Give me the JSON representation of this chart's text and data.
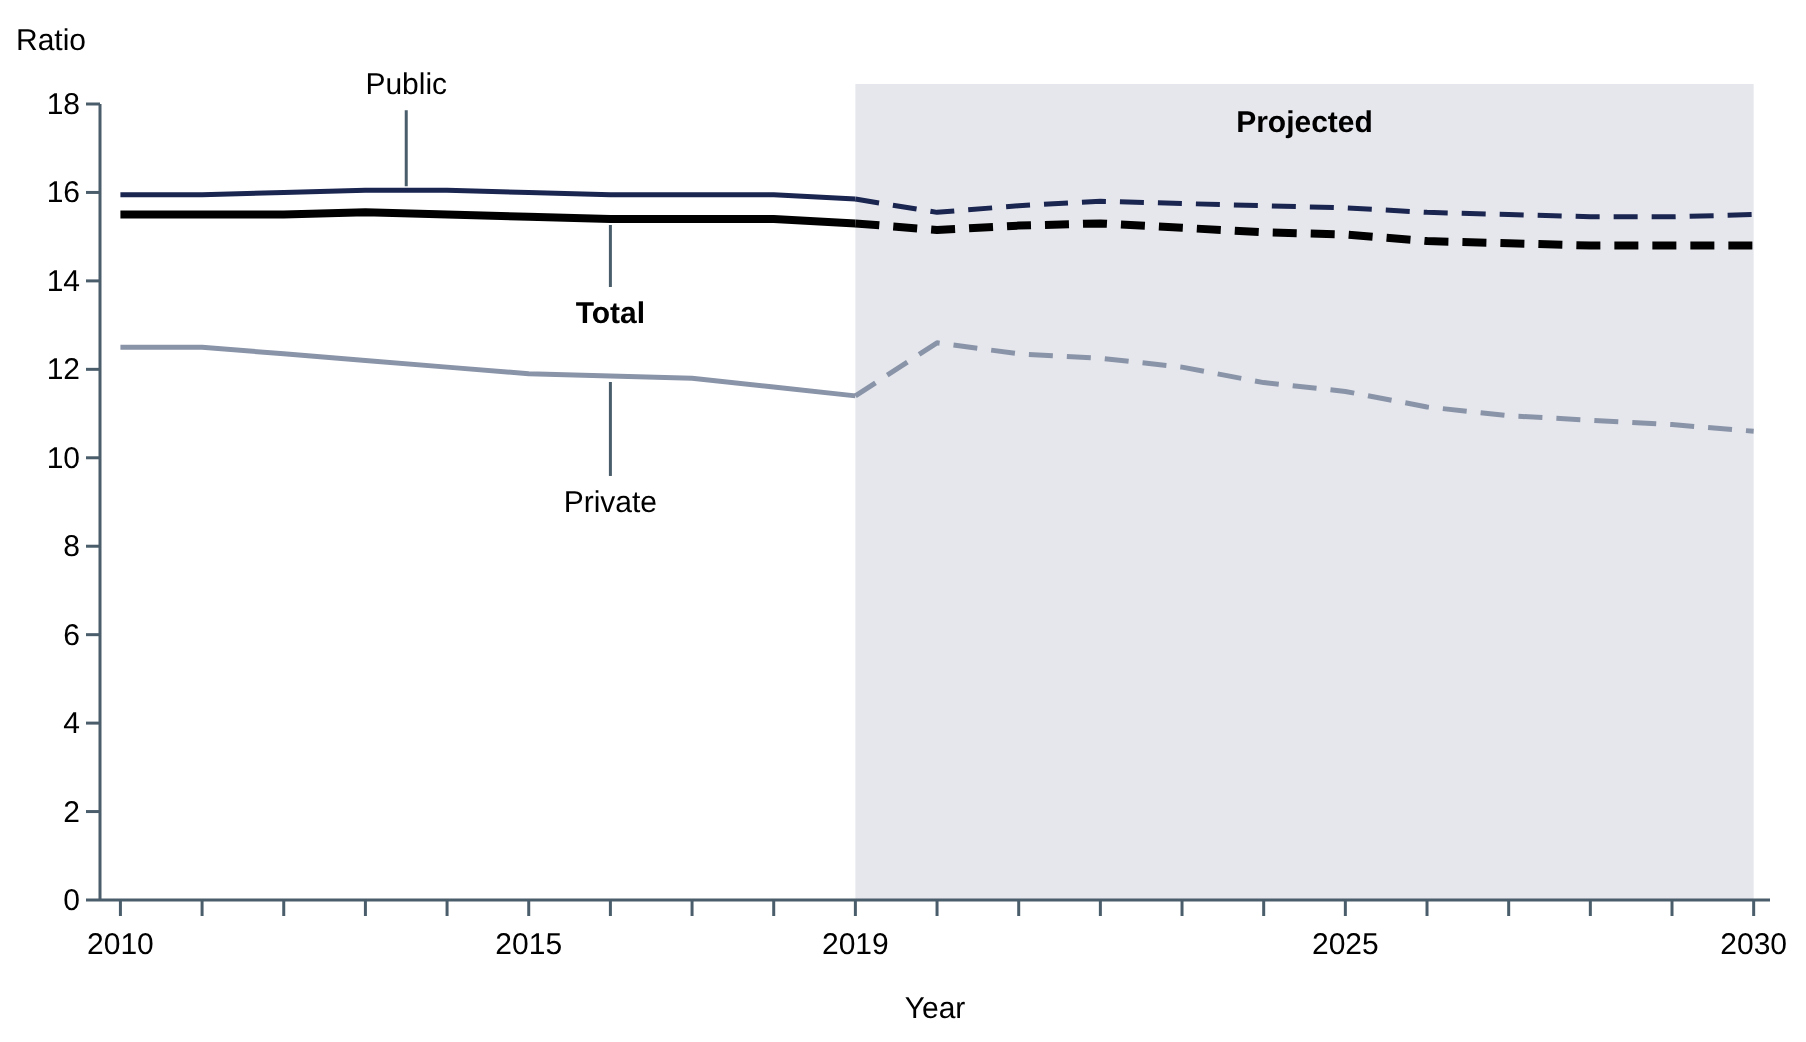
{
  "chart_data": {
    "type": "line",
    "xlabel": "Year",
    "ylabel": "Ratio",
    "xlim": [
      2009.75,
      2030.2
    ],
    "ylim": [
      0,
      18
    ],
    "xticks": [
      2010,
      {
        "value": 2011,
        "label": null
      },
      {
        "value": 2012,
        "label": null
      },
      {
        "value": 2013,
        "label": null
      },
      {
        "value": 2014,
        "label": null
      },
      2015,
      {
        "value": 2016,
        "label": null
      },
      {
        "value": 2017,
        "label": null
      },
      {
        "value": 2018,
        "label": null
      },
      2019,
      {
        "value": 2020,
        "label": null
      },
      {
        "value": 2021,
        "label": null
      },
      {
        "value": 2022,
        "label": null
      },
      {
        "value": 2023,
        "label": null
      },
      {
        "value": 2024,
        "label": null
      },
      2025,
      {
        "value": 2026,
        "label": null
      },
      {
        "value": 2027,
        "label": null
      },
      {
        "value": 2028,
        "label": null
      },
      {
        "value": 2029,
        "label": null
      },
      2030
    ],
    "yticks": [
      0,
      2,
      4,
      6,
      8,
      10,
      12,
      14,
      16,
      18
    ],
    "grid": false,
    "bands": [
      {
        "axis": "x",
        "from": 2019,
        "to": 2030,
        "label": "Projected",
        "color": "#e6e7ed"
      }
    ],
    "series": [
      {
        "name": "Public",
        "color": "#1a2550",
        "line_style": "solid",
        "x": [
          2010,
          2011,
          2012,
          2013,
          2014,
          2015,
          2016,
          2017,
          2018,
          2019
        ],
        "values": [
          15.95,
          15.95,
          16.0,
          16.05,
          16.05,
          16.0,
          15.95,
          15.95,
          15.95,
          15.85
        ]
      },
      {
        "color": "#1a2550",
        "line_style": "dashed",
        "x": [
          2019,
          2020,
          2021,
          2022,
          2023,
          2024,
          2025,
          2026,
          2027,
          2028,
          2029,
          2030
        ],
        "values": [
          15.85,
          15.55,
          15.7,
          15.8,
          15.75,
          15.7,
          15.65,
          15.55,
          15.5,
          15.45,
          15.45,
          15.5
        ]
      },
      {
        "name": "Total",
        "color": "#000000",
        "line_style": "solid",
        "x": [
          2010,
          2011,
          2012,
          2013,
          2014,
          2015,
          2016,
          2017,
          2018,
          2019
        ],
        "values": [
          15.5,
          15.5,
          15.5,
          15.55,
          15.5,
          15.45,
          15.4,
          15.4,
          15.4,
          15.3
        ]
      },
      {
        "color": "#000000",
        "line_style": "dashed",
        "x": [
          2019,
          2020,
          2021,
          2022,
          2023,
          2024,
          2025,
          2026,
          2027,
          2028,
          2029,
          2030
        ],
        "values": [
          15.3,
          15.15,
          15.25,
          15.3,
          15.2,
          15.1,
          15.05,
          14.9,
          14.85,
          14.8,
          14.8,
          14.8
        ]
      },
      {
        "name": "Private",
        "color": "#8a94a8",
        "line_style": "solid",
        "x": [
          2010,
          2011,
          2012,
          2013,
          2014,
          2015,
          2016,
          2017,
          2018,
          2019
        ],
        "values": [
          12.5,
          12.5,
          12.35,
          12.2,
          12.05,
          11.9,
          11.85,
          11.8,
          11.6,
          11.4
        ]
      },
      {
        "color": "#8a94a8",
        "line_style": "dashed",
        "x": [
          2019,
          2020,
          2021,
          2022,
          2023,
          2024,
          2025,
          2026,
          2027,
          2028,
          2029,
          2030
        ],
        "values": [
          11.4,
          12.6,
          12.35,
          12.25,
          12.05,
          11.7,
          11.5,
          11.15,
          10.95,
          10.85,
          10.75,
          10.6
        ]
      }
    ]
  }
}
